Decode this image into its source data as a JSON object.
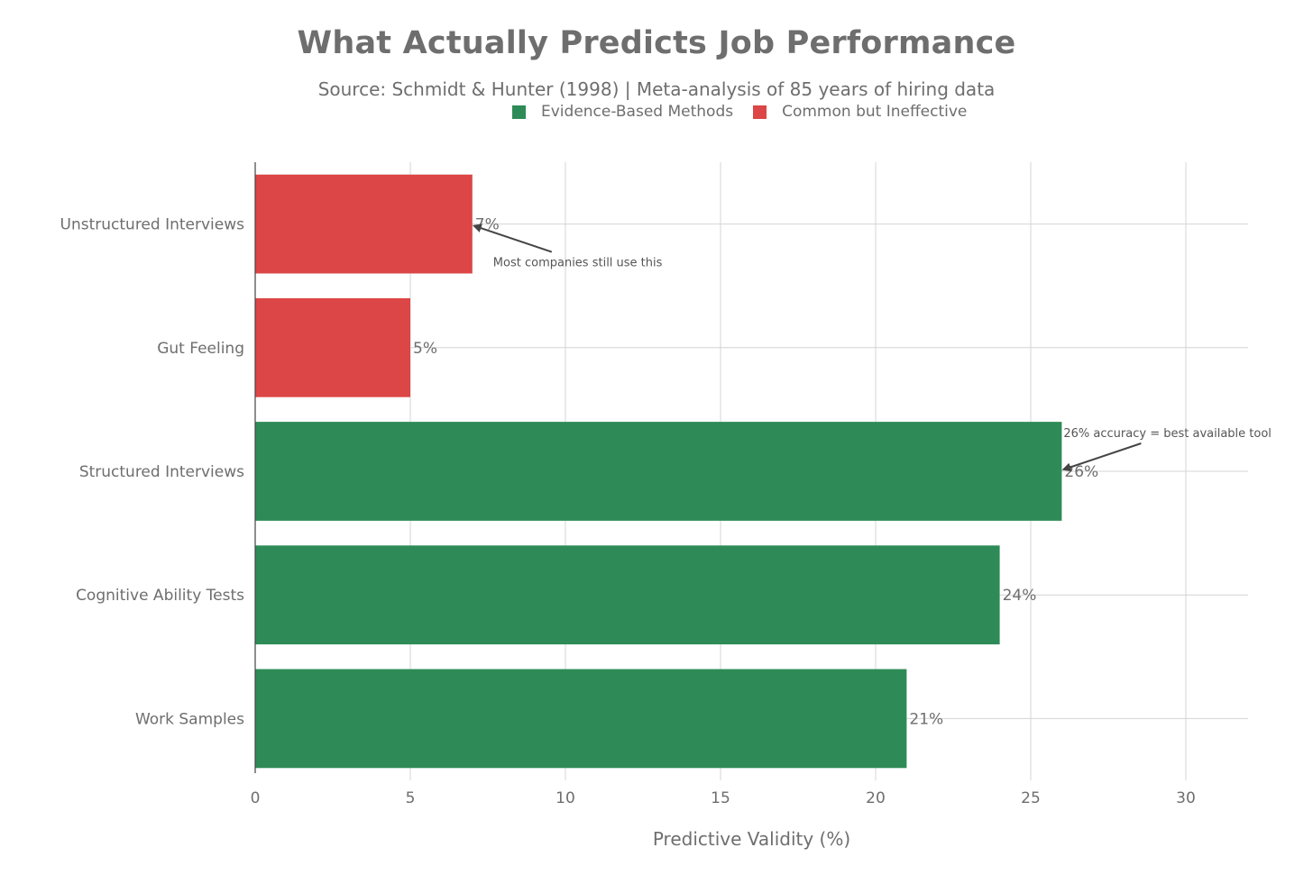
{
  "chart_data": {
    "type": "bar",
    "orientation": "horizontal",
    "title": "What Actually Predicts Job Performance",
    "subtitle": "Source: Schmidt & Hunter (1998) | Meta-analysis of 85 years of hiring data",
    "xlabel": "Predictive Validity (%)",
    "ylabel": "",
    "xlim": [
      0,
      32
    ],
    "x_ticks": [
      0,
      5,
      10,
      15,
      20,
      25,
      30
    ],
    "grid": true,
    "legend_position": "top",
    "legend": [
      {
        "name": "Evidence-Based Methods",
        "color": "#2e8b57"
      },
      {
        "name": "Common but Ineffective",
        "color": "#dc4646"
      }
    ],
    "categories": [
      "Unstructured Interviews",
      "Gut Feeling",
      "Structured Interviews",
      "Cognitive Ability Tests",
      "Work Samples"
    ],
    "values": [
      7,
      5,
      26,
      24,
      21
    ],
    "bar_groups": [
      "Common but Ineffective",
      "Common but Ineffective",
      "Evidence-Based Methods",
      "Evidence-Based Methods",
      "Evidence-Based Methods"
    ],
    "data_labels": [
      "7%",
      "5%",
      "26%",
      "24%",
      "21%"
    ],
    "annotations": [
      {
        "text": "Most companies still use this",
        "category": "Unstructured Interviews",
        "value": 7
      },
      {
        "text": "26% accuracy = best available tool",
        "category": "Structured Interviews",
        "value": 26
      }
    ]
  }
}
